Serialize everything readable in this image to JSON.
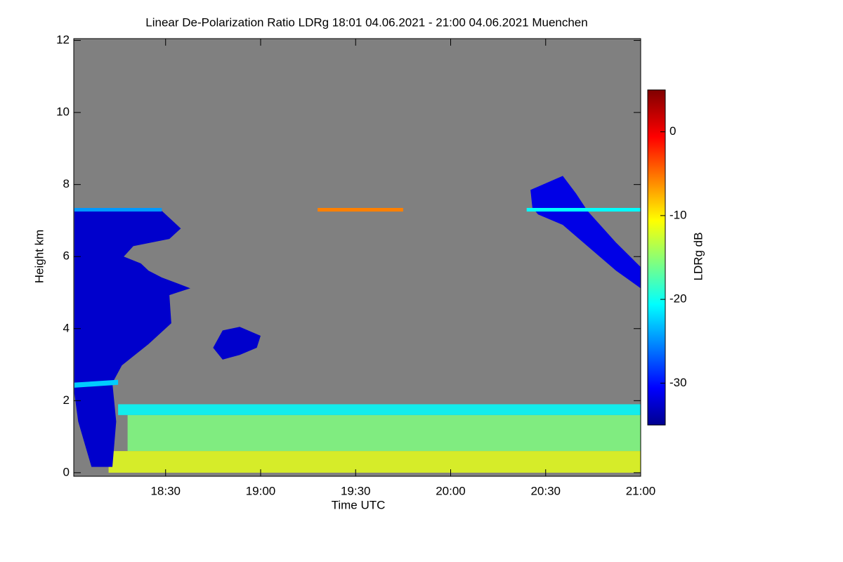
{
  "chart_data": {
    "type": "heatmap",
    "title": "Linear De-Polarization Ratio LDRg   18:01 04.06.2021 - 21:00 04.06.2021 Muenchen",
    "xlabel": "Time UTC",
    "ylabel": "Height km",
    "colorbar_label": "LDRg dB",
    "colormap": "jet",
    "background": "#808080",
    "xlim": [
      18.0167,
      21.0
    ],
    "xticks": [
      {
        "value": 18.5,
        "label": "18:30"
      },
      {
        "value": 19.0,
        "label": "19:00"
      },
      {
        "value": 19.5,
        "label": "19:30"
      },
      {
        "value": 20.0,
        "label": "20:00"
      },
      {
        "value": 20.5,
        "label": "20:30"
      },
      {
        "value": 21.0,
        "label": "21:00"
      }
    ],
    "ylim": [
      -0.1,
      12.05
    ],
    "yticks": [
      0,
      2,
      4,
      6,
      8,
      10,
      12
    ],
    "clim": [
      -35,
      5
    ],
    "cticks": [
      0,
      -10,
      -20,
      -30
    ],
    "bands": [
      {
        "value": -15,
        "time": [
          18.3,
          21.0
        ],
        "height": [
          0.6,
          1.6
        ]
      },
      {
        "value": -11,
        "time": [
          18.2,
          21.0
        ],
        "height": [
          0.0,
          0.6
        ]
      },
      {
        "value": -20,
        "time": [
          18.25,
          21.0
        ],
        "height": [
          1.6,
          1.9
        ]
      }
    ],
    "regions": [
      {
        "value": -32,
        "time": [
          18.02,
          18.22,
          18.48,
          18.58,
          18.52,
          18.33,
          18.28,
          18.37,
          18.41,
          18.48,
          18.63,
          18.52,
          18.53,
          18.41,
          18.27,
          18.22,
          18.24,
          18.22,
          18.11,
          18.04,
          18.02
        ],
        "height": [
          7.31,
          7.34,
          7.27,
          6.78,
          6.49,
          6.29,
          6.0,
          5.81,
          5.61,
          5.42,
          5.12,
          4.93,
          4.15,
          3.57,
          2.98,
          2.49,
          1.42,
          0.16,
          0.16,
          1.42,
          2.2
        ]
      },
      {
        "value": -32,
        "time": [
          18.75,
          18.8,
          18.89,
          19.0,
          18.98,
          18.89,
          18.8
        ],
        "height": [
          3.47,
          3.95,
          4.05,
          3.8,
          3.47,
          3.27,
          3.14
        ]
      },
      {
        "value": -31,
        "time": [
          20.42,
          20.59,
          20.66,
          20.72,
          20.87,
          21.0,
          21.0,
          20.87,
          20.72,
          20.59,
          20.46,
          20.43
        ],
        "height": [
          7.85,
          8.24,
          7.75,
          7.27,
          6.39,
          5.71,
          5.12,
          5.61,
          6.29,
          6.88,
          7.17,
          7.36
        ]
      },
      {
        "value": -22,
        "time": [
          18.02,
          18.25,
          18.25,
          18.02
        ],
        "height": [
          2.5,
          2.58,
          2.44,
          2.36
        ]
      },
      {
        "value": -24,
        "time": [
          18.02,
          18.48,
          18.48,
          18.02
        ],
        "height": [
          7.35,
          7.35,
          7.25,
          7.25
        ]
      },
      {
        "value": -20,
        "time": [
          20.4,
          21.0,
          21.0,
          20.4
        ],
        "height": [
          7.35,
          7.35,
          7.25,
          7.25
        ]
      },
      {
        "value": -5,
        "time": [
          19.3,
          19.75,
          19.75,
          19.3
        ],
        "height": [
          7.35,
          7.35,
          7.25,
          7.25
        ]
      }
    ]
  }
}
